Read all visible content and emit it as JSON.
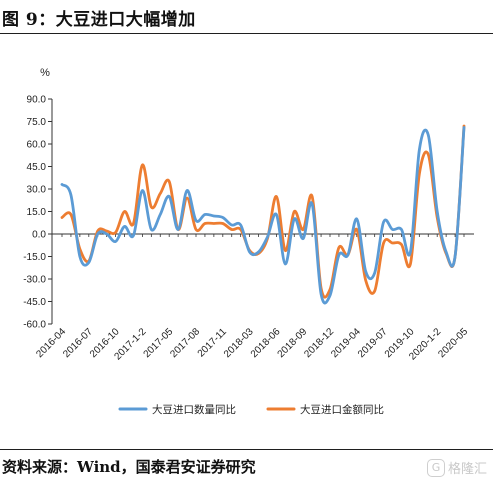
{
  "figure": {
    "title": "图 9：大豆进口大幅增加",
    "source": "资料来源：Wind，国泰君安证券研究",
    "watermark_text": "格隆汇",
    "watermark_logo": "G"
  },
  "chart_data": {
    "type": "line",
    "ylabel": "%",
    "ylim": [
      -60,
      90
    ],
    "yticks": [
      "90.0",
      "75.0",
      "60.0",
      "45.0",
      "30.0",
      "15.0",
      "0.0",
      "-15.0",
      "-30.0",
      "-45.0",
      "-60.0"
    ],
    "ytick_values": [
      90,
      75,
      60,
      45,
      30,
      15,
      0,
      -15,
      -30,
      -45,
      -60
    ],
    "grid": false,
    "legend_position": "bottom",
    "x_start": "2016-04",
    "x": [
      "2016-04",
      "2016-05",
      "2016-06",
      "2016-07",
      "2016-08",
      "2016-09",
      "2016-10",
      "2016-11",
      "2016-12",
      "2017-1-2",
      "2017-03",
      "2017-04",
      "2017-05",
      "2017-06",
      "2017-07",
      "2017-08",
      "2017-09",
      "2017-10",
      "2017-11",
      "2017-12",
      "2018-1-2",
      "2018-03",
      "2018-04",
      "2018-05",
      "2018-06",
      "2018-07",
      "2018-08",
      "2018-09",
      "2018-10",
      "2018-11",
      "2018-12",
      "2019-1-2",
      "2019-03",
      "2019-04",
      "2019-05",
      "2019-06",
      "2019-07",
      "2019-08",
      "2019-09",
      "2019-10",
      "2019-11",
      "2019-12",
      "2020-1-2",
      "2020-03",
      "2020-04",
      "2020-05"
    ],
    "xtick_labels": [
      "2016-04",
      "2016-07",
      "2016-10",
      "2017-1-2",
      "2017-05",
      "2017-08",
      "2017-11",
      "2018-03",
      "2018-06",
      "2018-09",
      "2018-12",
      "2019-04",
      "2019-07",
      "2019-10",
      "2020-1-2",
      "2020-05"
    ],
    "xtick_indices": [
      0,
      3,
      6,
      9,
      12,
      15,
      18,
      21,
      24,
      27,
      30,
      33,
      36,
      39,
      42,
      45
    ],
    "series": [
      {
        "name": "大豆进口数量同比",
        "color": "#5b9bd5",
        "values": [
          33,
          26,
          -15,
          -19,
          0,
          0,
          -5,
          5,
          -1,
          29,
          3,
          13,
          25,
          3,
          29,
          9,
          13,
          12,
          11,
          6,
          6,
          -12,
          -12,
          -2,
          13,
          -20,
          10,
          -3,
          20,
          -40,
          -41,
          -14,
          -14,
          10,
          -25,
          -26,
          8,
          3,
          3,
          -12,
          56,
          66,
          15,
          -12,
          -15,
          71
        ]
      },
      {
        "name": "大豆进口金额同比",
        "color": "#ed7d31",
        "values": [
          11,
          13,
          -10,
          -18,
          2,
          2,
          1,
          15,
          7,
          46,
          18,
          27,
          35,
          3,
          24,
          3,
          7,
          7,
          7,
          3,
          3,
          -11,
          -13,
          -3,
          25,
          -11,
          15,
          3,
          25,
          -36,
          -37,
          -9,
          -14,
          3,
          -31,
          -38,
          -6,
          -6,
          -7,
          -20,
          40,
          53,
          11,
          -13,
          -15,
          72
        ]
      }
    ]
  }
}
